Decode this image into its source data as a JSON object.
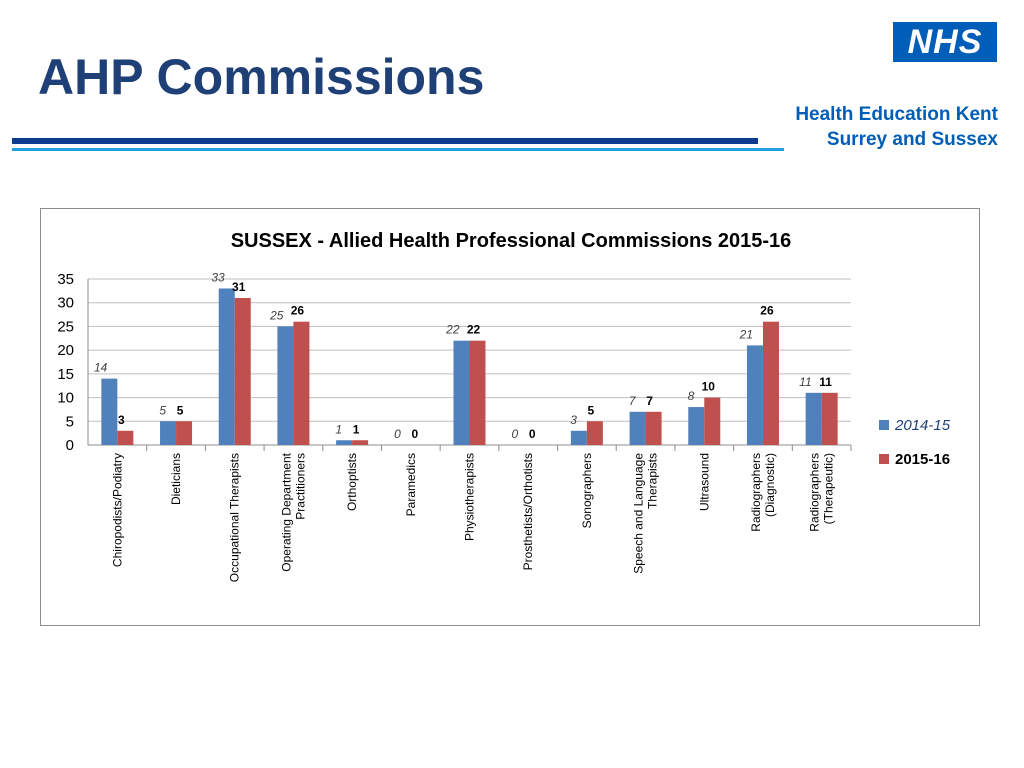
{
  "header": {
    "title": "AHP Commissions",
    "logo_text": "NHS",
    "org_line1": "Health Education Kent",
    "org_line2": "Surrey and Sussex"
  },
  "colors": {
    "series_2014": "#4f81bd",
    "series_2015": "#c0504d",
    "title": "#1f3f77",
    "brand": "#005eb8"
  },
  "chart_data": {
    "type": "bar",
    "title": "SUSSEX - Allied Health Professional Commissions 2015-16",
    "xlabel": "",
    "ylabel": "",
    "ylim": [
      0,
      35
    ],
    "yticks": [
      0,
      5,
      10,
      15,
      20,
      25,
      30,
      35
    ],
    "grid": true,
    "legend_position": "right",
    "categories": [
      "Chiropodists/Podiatry",
      "Dieticians",
      "Occupational Therapists",
      "Operating Department Practitioners",
      "Orthoptists",
      "Paramedics",
      "Physiotherapists",
      "Prosthetists/Orthotists",
      "Sonographers",
      "Speech and Language Therapists",
      "Ultrasound",
      "Radiographers (Diagnostic)",
      "Radiographers (Therapeutic)"
    ],
    "series": [
      {
        "name": "2014-15",
        "values": [
          14,
          5,
          33,
          25,
          1,
          0,
          22,
          0,
          3,
          7,
          8,
          21,
          11
        ]
      },
      {
        "name": "2015-16",
        "values": [
          3,
          5,
          31,
          26,
          1,
          0,
          22,
          0,
          5,
          7,
          10,
          26,
          11
        ]
      }
    ]
  }
}
